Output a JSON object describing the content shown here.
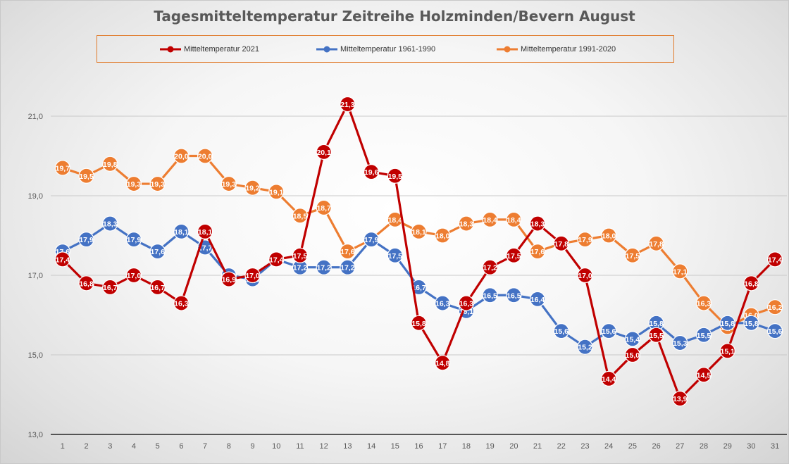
{
  "chart_data": {
    "type": "line",
    "title": "Tagesmitteltemperatur Zeitreihe Holzminden/Bevern August",
    "xlabel": "",
    "ylabel": "",
    "ylim": [
      13,
      22.5
    ],
    "yticks": [
      13,
      15,
      17,
      19,
      21
    ],
    "ytick_labels": [
      "13,0",
      "15,0",
      "17,0",
      "19,0",
      "21,0"
    ],
    "grid": true,
    "legend_position": "top",
    "categories": [
      "1",
      "2",
      "3",
      "4",
      "5",
      "6",
      "7",
      "8",
      "9",
      "10",
      "11",
      "12",
      "13",
      "14",
      "15",
      "16",
      "17",
      "18",
      "19",
      "20",
      "21",
      "22",
      "23",
      "24",
      "25",
      "26",
      "27",
      "28",
      "29",
      "30",
      "31"
    ],
    "series": [
      {
        "name": "Mitteltemperatur 1991-2020",
        "color": "#ed7d31",
        "values": [
          19.7,
          19.5,
          19.8,
          19.3,
          19.3,
          20.0,
          20.0,
          19.3,
          19.2,
          19.1,
          18.5,
          18.7,
          17.6,
          17.9,
          18.4,
          18.1,
          18.0,
          18.3,
          18.4,
          18.4,
          17.6,
          17.8,
          17.9,
          18.0,
          17.5,
          17.8,
          17.1,
          16.3,
          15.7,
          16.0,
          16.2
        ]
      },
      {
        "name": "Mitteltemperatur 1961-1990",
        "color": "#4472c4",
        "values": [
          17.6,
          17.9,
          18.3,
          17.9,
          17.6,
          18.1,
          17.7,
          17.0,
          16.9,
          17.4,
          17.2,
          17.2,
          17.2,
          17.9,
          17.5,
          16.7,
          16.3,
          16.1,
          16.5,
          16.5,
          16.4,
          15.6,
          15.2,
          15.6,
          15.4,
          15.8,
          15.3,
          15.5,
          15.8,
          15.8,
          15.6
        ]
      },
      {
        "name": "Mitteltemperatur 2021",
        "color": "#c00000",
        "values": [
          17.4,
          16.8,
          16.7,
          17.0,
          16.7,
          16.3,
          18.1,
          16.9,
          17.0,
          17.4,
          17.5,
          20.1,
          21.3,
          19.6,
          19.5,
          15.8,
          14.8,
          16.3,
          17.2,
          17.5,
          18.3,
          17.8,
          17.0,
          14.4,
          15.0,
          15.5,
          13.9,
          14.5,
          15.1,
          16.8,
          17.4
        ]
      }
    ]
  },
  "legend": {
    "items": [
      {
        "label": "Mitteltemperatur 2021",
        "color": "#c00000"
      },
      {
        "label": "Mitteltemperatur 1961-1990",
        "color": "#4472c4"
      },
      {
        "label": "Mitteltemperatur 1991-2020",
        "color": "#ed7d31"
      }
    ]
  }
}
